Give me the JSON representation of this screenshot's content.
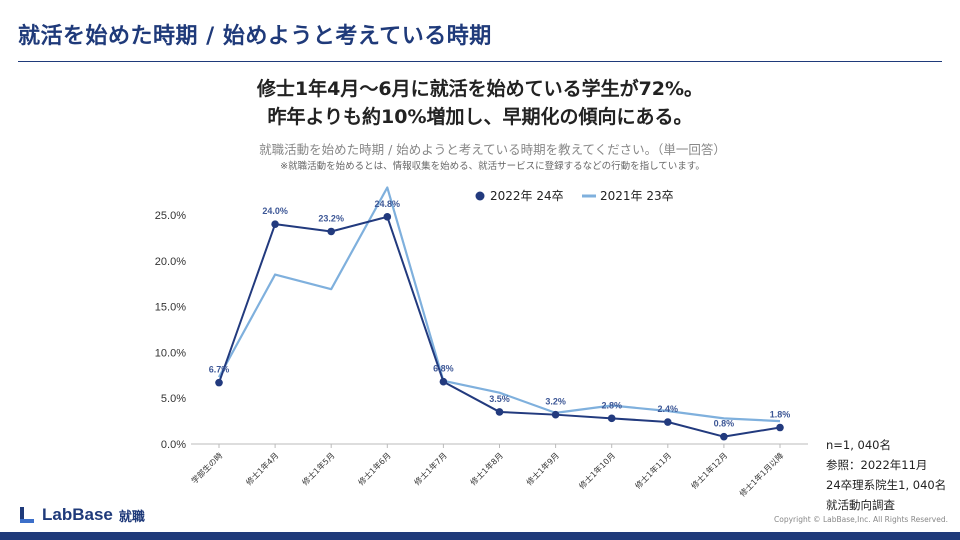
{
  "page": {
    "title": "就活を始めた時期 / 始めようと考えている時期",
    "headline_line1": "修士1年4月〜6月に就活を始めている学生が72%。",
    "headline_line2": "昨年よりも約10%増加し、早期化の傾向にある。",
    "subtitle": "就職活動を始めた時期 / 始めようと考えている時期を教えてください。（単一回答）",
    "note": "※就職活動を始めるとは、情報収集を始める、就活サービスに登録するなどの行動を指しています。"
  },
  "sidenote": {
    "n": "n=1, 040名",
    "ref": "参照：2022年11月",
    "target": "24卒理系院生1, 040名",
    "survey": "就活動向調査"
  },
  "footer": {
    "logo_text": "LabBase",
    "logo_sub": "就職",
    "copyright": "Copyright ©  LabBase,Inc. All Rights Reserved."
  },
  "colors": {
    "series_2022": "#223a7e",
    "series_2021": "#7fb0dd",
    "brand": "#1f3a7a"
  },
  "chart_data": {
    "type": "line",
    "title": "就職活動を始めた時期 / 始めようと考えている時期",
    "xlabel": "",
    "ylabel": "",
    "ylim": [
      0,
      25
    ],
    "yticks": [
      "0.0%",
      "5.0%",
      "10.0%",
      "15.0%",
      "20.0%",
      "25.0%"
    ],
    "ytick_values": [
      0,
      5,
      10,
      15,
      20,
      25
    ],
    "grid": false,
    "legend_position": "top",
    "categories": [
      "学部生の時",
      "修士1年4月",
      "修士1年5月",
      "修士1年6月",
      "修士1年7月",
      "修士1年8月",
      "修士1年9月",
      "修士1年10月",
      "修士1年11月",
      "修士1年12月",
      "修士1年1月以降"
    ],
    "series": [
      {
        "name": "2022年 24卒",
        "values": [
          6.7,
          24.0,
          23.2,
          24.8,
          6.8,
          3.5,
          3.2,
          2.8,
          2.4,
          0.8,
          1.8
        ],
        "labels": [
          "6.7%",
          "24.0%",
          "23.2%",
          "24.8%",
          "6.8%",
          "3.5%",
          "3.2%",
          "2.8%",
          "2.4%",
          "0.8%",
          "1.8%"
        ],
        "markers": true
      },
      {
        "name": "2021年 23卒",
        "values": [
          7.3,
          18.5,
          16.9,
          28.0,
          6.9,
          5.6,
          3.4,
          4.2,
          3.6,
          2.8,
          2.5
        ],
        "markers": false
      }
    ]
  }
}
